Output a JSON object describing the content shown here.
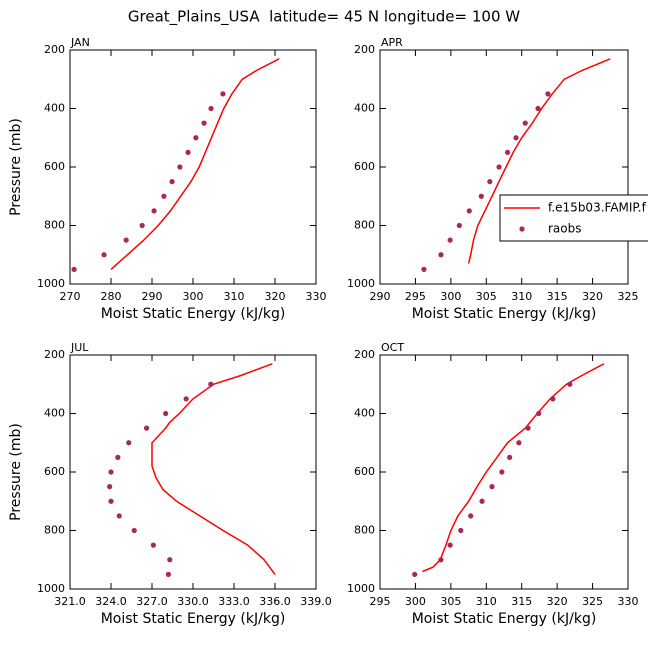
{
  "title": "Great_Plains_USA  latitude= 45 N longitude= 100 W",
  "chart_data": [
    {
      "type": "line",
      "panel_title": "JAN",
      "x_label": "Moist Static Energy (kJ/kg)",
      "y_label": "Pressure (mb)",
      "xlim": [
        270,
        330
      ],
      "xticks": [
        270,
        280,
        290,
        300,
        310,
        320,
        330
      ],
      "ylim": [
        200,
        1000
      ],
      "yticks": [
        200,
        400,
        600,
        800,
        1000
      ],
      "y_inverted": true,
      "series": [
        {
          "mode": "line",
          "color": "#ff0000",
          "y": [
            230,
            270,
            300,
            350,
            400,
            450,
            500,
            550,
            600,
            650,
            700,
            750,
            800,
            850,
            900,
            925,
            950
          ],
          "x": [
            321,
            315.5,
            312,
            309.5,
            307.5,
            306,
            304.5,
            303,
            301.5,
            299.5,
            297,
            294.5,
            291.5,
            288,
            284,
            282,
            280
          ]
        },
        {
          "mode": "marker",
          "color": "#a8285a",
          "y": [
            350,
            400,
            450,
            500,
            550,
            600,
            650,
            700,
            750,
            800,
            850,
            900,
            950
          ],
          "x": [
            307.3,
            304.4,
            302.7,
            300.7,
            298.8,
            296.8,
            294.9,
            292.9,
            290.5,
            287.6,
            283.7,
            278.3,
            271
          ]
        }
      ]
    },
    {
      "type": "line",
      "panel_title": "APR",
      "x_label": "Moist Static Energy (kJ/kg)",
      "xlim": [
        290,
        325
      ],
      "xticks": [
        290,
        295,
        300,
        305,
        310,
        315,
        320,
        325
      ],
      "ylim": [
        200,
        1000
      ],
      "yticks": [
        200,
        400,
        600,
        800,
        1000
      ],
      "y_inverted": true,
      "legend": "right",
      "series": [
        {
          "name": "f.e15b03.FAMIP.f",
          "mode": "line",
          "color": "#ff0000",
          "y": [
            230,
            270,
            300,
            350,
            400,
            450,
            500,
            550,
            600,
            650,
            700,
            750,
            800,
            850,
            900,
            930
          ],
          "x": [
            322.5,
            318.5,
            316,
            314.3,
            312.8,
            311.5,
            310,
            308.8,
            307.8,
            306.8,
            305.8,
            304.8,
            303.8,
            303.2,
            302.8,
            302.5
          ]
        },
        {
          "name": "raobs",
          "mode": "marker",
          "color": "#a8285a",
          "y": [
            350,
            400,
            450,
            500,
            550,
            600,
            650,
            700,
            750,
            800,
            850,
            900,
            950
          ],
          "x": [
            313.7,
            312.3,
            310.5,
            309.2,
            308,
            306.8,
            305.5,
            304.3,
            302.6,
            301.2,
            299.9,
            298.6,
            296.2
          ]
        }
      ]
    },
    {
      "type": "line",
      "panel_title": "JUL",
      "x_label": "Moist Static Energy (kJ/kg)",
      "y_label": "Pressure (mb)",
      "xlim": [
        321,
        339
      ],
      "xticks": [
        {
          "value": 321,
          "label": "321.0"
        },
        {
          "value": 324,
          "label": "324.0"
        },
        {
          "value": 327,
          "label": "327.0"
        },
        {
          "value": 330,
          "label": "330.0"
        },
        {
          "value": 333,
          "label": "333.0"
        },
        {
          "value": 336,
          "label": "336.0"
        },
        {
          "value": 339,
          "label": "339.0"
        }
      ],
      "ylim": [
        200,
        1000
      ],
      "yticks": [
        200,
        400,
        600,
        800,
        1000
      ],
      "y_inverted": true,
      "series": [
        {
          "mode": "line",
          "color": "#ff0000",
          "y": [
            230,
            270,
            300,
            350,
            400,
            430,
            450,
            500,
            550,
            580,
            620,
            660,
            700,
            750,
            800,
            850,
            900,
            950
          ],
          "x": [
            335.8,
            333.5,
            331.5,
            330,
            329,
            328.3,
            328,
            327,
            327,
            327,
            327.3,
            327.8,
            328.8,
            330.5,
            332.2,
            334,
            335.2,
            336
          ]
        },
        {
          "mode": "marker",
          "color": "#a8285a",
          "y": [
            300,
            350,
            400,
            450,
            500,
            550,
            600,
            650,
            700,
            750,
            800,
            850,
            900,
            950
          ],
          "x": [
            331.3,
            329.5,
            328,
            326.6,
            325.3,
            324.5,
            324,
            323.9,
            324,
            324.6,
            325.7,
            327.1,
            328.3,
            328.2
          ]
        }
      ]
    },
    {
      "type": "line",
      "panel_title": "OCT",
      "x_label": "Moist Static Energy (kJ/kg)",
      "xlim": [
        295,
        330
      ],
      "xticks": [
        295,
        300,
        305,
        310,
        315,
        320,
        325,
        330
      ],
      "ylim": [
        200,
        1000
      ],
      "yticks": [
        200,
        400,
        600,
        800,
        1000
      ],
      "y_inverted": true,
      "series": [
        {
          "mode": "line",
          "color": "#ff0000",
          "y": [
            230,
            270,
            300,
            350,
            400,
            450,
            500,
            550,
            600,
            650,
            700,
            750,
            800,
            850,
            900,
            925,
            940
          ],
          "x": [
            326.6,
            323.5,
            321.3,
            319,
            317.2,
            315.5,
            313,
            311.5,
            310,
            308.7,
            307.5,
            306,
            305,
            304.3,
            303.5,
            302.5,
            301
          ]
        },
        {
          "mode": "marker",
          "color": "#a8285a",
          "y": [
            300,
            350,
            400,
            450,
            500,
            550,
            600,
            650,
            700,
            750,
            800,
            850,
            900,
            950
          ],
          "x": [
            321.8,
            319.4,
            317.4,
            315.9,
            314.6,
            313.3,
            312.2,
            310.8,
            309.4,
            307.8,
            306.4,
            304.9,
            303.6,
            299.9
          ]
        }
      ]
    }
  ]
}
